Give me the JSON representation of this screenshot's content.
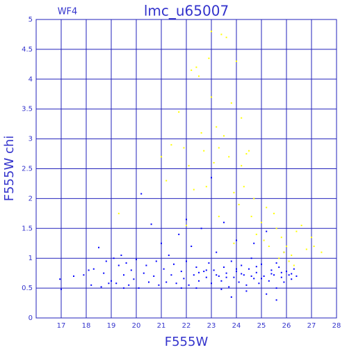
{
  "chart_data": {
    "type": "scatter",
    "title": "lmc_u65007",
    "annotation": "WF4",
    "xlabel": "F555W",
    "ylabel": "F555W chi",
    "xlim": [
      16,
      28
    ],
    "xticks": [
      17,
      18,
      19,
      20,
      21,
      22,
      23,
      24,
      25,
      26,
      27,
      28
    ],
    "ylim": [
      0,
      5
    ],
    "yticks": [
      0,
      0.5,
      1,
      1.5,
      2,
      2.5,
      3,
      3.5,
      4,
      4.5,
      5
    ],
    "grid": true,
    "series": [
      {
        "color": "#0000ff",
        "x": [
          16.95,
          17.0,
          17.9,
          18.1,
          18.3,
          18.5,
          18.6,
          18.7,
          18.8,
          19.0,
          19.1,
          19.2,
          19.3,
          19.4,
          19.5,
          19.6,
          19.7,
          19.8,
          19.9,
          20.0,
          20.1,
          20.2,
          20.3,
          20.4,
          20.5,
          20.6,
          20.7,
          20.8,
          20.9,
          21.0,
          21.1,
          21.2,
          21.3,
          21.4,
          21.5,
          21.6,
          21.7,
          21.8,
          21.9,
          22.0,
          22.1,
          22.2,
          22.3,
          22.4,
          22.5,
          22.6,
          22.7,
          22.8,
          22.9,
          23.0,
          23.0,
          23.1,
          23.2,
          23.3,
          23.4,
          23.5,
          23.6,
          23.7,
          23.8,
          23.9,
          24.0,
          24.0,
          24.1,
          24.2,
          24.3,
          24.4,
          24.5,
          24.6,
          24.7,
          24.8,
          24.9,
          25.0,
          25.1,
          25.2,
          25.3,
          25.4,
          25.5,
          25.6,
          25.7,
          25.8,
          25.9,
          26.0,
          26.1,
          26.2,
          26.3,
          26.4,
          23.2,
          23.6,
          24.2,
          24.6,
          25.0,
          25.4,
          25.8,
          26.2,
          22.5,
          22.8,
          24.0,
          24.8,
          25.6,
          21.8,
          22.4,
          23.4,
          24.4,
          25.2,
          25.6,
          23.8,
          18.2,
          18.9,
          19.5,
          17.5,
          22.0,
          23.5,
          24.7,
          25.9
        ],
        "values": [
          0.65,
          0.48,
          0.72,
          0.8,
          0.82,
          1.18,
          0.52,
          0.75,
          0.95,
          0.62,
          1.0,
          0.58,
          0.88,
          1.05,
          0.72,
          0.92,
          0.55,
          0.8,
          0.65,
          0.98,
          0.5,
          2.08,
          0.75,
          0.88,
          0.6,
          1.57,
          0.7,
          0.95,
          0.55,
          1.25,
          0.82,
          0.6,
          1.05,
          0.72,
          0.9,
          0.58,
          1.4,
          0.78,
          0.66,
          0.95,
          0.55,
          1.2,
          0.72,
          0.85,
          0.62,
          1.5,
          0.78,
          0.68,
          0.92,
          2.35,
          0.58,
          0.8,
          1.1,
          0.7,
          0.62,
          0.85,
          0.75,
          0.52,
          0.95,
          0.68,
          1.3,
          0.78,
          0.6,
          0.88,
          0.72,
          0.55,
          0.82,
          1.0,
          0.66,
          0.76,
          0.58,
          0.9,
          0.7,
          1.45,
          0.62,
          0.8,
          0.72,
          0.5,
          0.85,
          0.68,
          0.6,
          0.78,
          0.72,
          0.65,
          0.82,
          0.7,
          0.72,
          0.68,
          0.74,
          0.7,
          0.66,
          0.74,
          0.76,
          0.74,
          0.76,
          0.8,
          0.82,
          0.86,
          0.92,
          0.5,
          0.5,
          0.48,
          0.45,
          0.4,
          0.3,
          0.35,
          0.55,
          0.58,
          0.5,
          0.7,
          1.65,
          1.6,
          1.25,
          1.1
        ]
      },
      {
        "color": "#ffff00",
        "x": [
          19.3,
          21.0,
          21.2,
          21.4,
          21.7,
          21.9,
          22.1,
          22.3,
          22.4,
          22.5,
          22.6,
          22.7,
          22.8,
          22.9,
          23.0,
          23.0,
          23.1,
          23.2,
          23.3,
          23.4,
          23.5,
          23.6,
          23.7,
          23.8,
          23.9,
          24.0,
          24.1,
          24.2,
          24.3,
          24.4,
          24.5,
          24.6,
          24.7,
          24.8,
          25.0,
          25.1,
          25.2,
          25.3,
          25.5,
          25.6,
          25.8,
          25.9,
          26.0,
          26.2,
          26.4,
          26.6,
          26.8,
          27.0,
          27.1,
          27.4,
          26.1,
          25.7,
          26.3,
          22.0,
          23.9,
          24.2,
          23.3,
          22.2
        ],
        "values": [
          1.75,
          2.7,
          2.3,
          2.9,
          3.45,
          2.85,
          2.55,
          2.15,
          4.2,
          4.05,
          3.1,
          2.8,
          2.2,
          4.35,
          4.8,
          3.7,
          2.6,
          3.2,
          1.7,
          4.75,
          3.05,
          4.7,
          2.7,
          3.6,
          2.1,
          4.3,
          1.9,
          2.55,
          2.2,
          2.75,
          2.8,
          1.7,
          2.0,
          1.4,
          1.6,
          1.3,
          1.85,
          1.2,
          1.75,
          1.5,
          1.35,
          1.1,
          1.2,
          1.05,
          1.45,
          1.55,
          1.15,
          1.35,
          1.2,
          1.1,
          0.95,
          1.0,
          0.88,
          1.55,
          1.25,
          3.35,
          2.85,
          4.15
        ]
      }
    ]
  }
}
